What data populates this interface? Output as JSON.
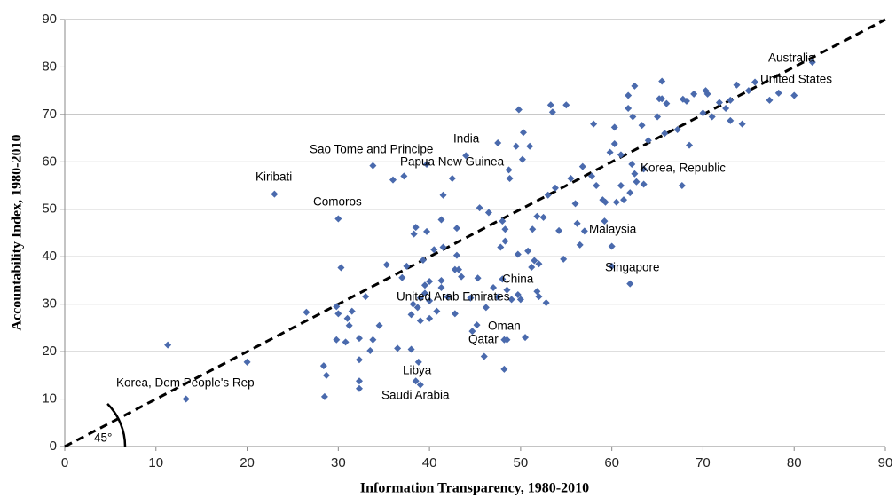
{
  "chart_data": {
    "type": "scatter",
    "x_label": "Information Transparency, 1980-2010",
    "y_label": "Accountability Index, 1980-2010",
    "xlim": [
      0,
      90
    ],
    "ylim": [
      0,
      90
    ],
    "xticks": [
      0,
      10,
      20,
      30,
      40,
      50,
      60,
      70,
      80,
      90
    ],
    "yticks": [
      0,
      10,
      20,
      30,
      40,
      50,
      60,
      70,
      80,
      90
    ],
    "grid": true,
    "diagonal": {
      "x": [
        0,
        90
      ],
      "y": [
        0,
        90
      ],
      "label": "45°"
    },
    "annotations": [
      "Australia",
      "United States",
      "Korea, Republic",
      "Malaysia",
      "Singapore",
      "China",
      "United Arab Emirates",
      "Oman",
      "Qatar",
      "Libya",
      "Saudi Arabia",
      "Korea, Dem People's Rep",
      "Kiribati",
      "Comoros",
      "Sao Tome and Principe",
      "Papua New Guinea",
      "India"
    ],
    "series": [
      {
        "color": "#4a6aad",
        "x": [
          11.3,
          13.3,
          20,
          23,
          26.5,
          28.4,
          28.5,
          28.7,
          29.8,
          29.8,
          30,
          30,
          30.3,
          30.8,
          31,
          31.2,
          31.5,
          32.3,
          32.3,
          32.3,
          32.3,
          33,
          33.5,
          33.8,
          33.8,
          34.5,
          35.3,
          36,
          36.5,
          37,
          37.2,
          37.5,
          38,
          38,
          38.2,
          38.3,
          38.5,
          38.5,
          38.7,
          38.8,
          39,
          39,
          39,
          39.3,
          39.5,
          39.5,
          39.7,
          39.7,
          40,
          40,
          40,
          40.5,
          40.8,
          41.3,
          41.3,
          41.3,
          41.5,
          41.5,
          42,
          42.5,
          42.8,
          42.8,
          43,
          43,
          43.2,
          43.5,
          44,
          44.5,
          44.7,
          45.2,
          45.3,
          45.5,
          46,
          46.2,
          46.5,
          47,
          47.5,
          47.5,
          47.8,
          48,
          48,
          48.2,
          48.2,
          48.3,
          48.3,
          48.5,
          48.5,
          48.7,
          48.8,
          49,
          49.5,
          49.7,
          49.7,
          49.8,
          50,
          50.2,
          50.3,
          50.5,
          50.8,
          51,
          51.2,
          51.3,
          51.5,
          51.8,
          51.8,
          52,
          52,
          52.5,
          52.8,
          53,
          53.3,
          53.5,
          53.8,
          54.2,
          54.7,
          55,
          55.5,
          56,
          56.2,
          56.5,
          56.8,
          57,
          57.8,
          58,
          58.3,
          59,
          59.2,
          59.3,
          59.8,
          60,
          60,
          60.3,
          60.3,
          60.5,
          61,
          61,
          61.3,
          61.8,
          61.8,
          62,
          62,
          62.2,
          62.3,
          62.5,
          62.5,
          62.7,
          63.3,
          63.5,
          63.5,
          64,
          65,
          65.2,
          65.5,
          65.5,
          65.8,
          66,
          67.2,
          67.7,
          67.8,
          68.2,
          68.5,
          69,
          70,
          70.3,
          70.5,
          71,
          71.8,
          72.5,
          73,
          73,
          73.7,
          74.3,
          75,
          75.7,
          77.3,
          78.3,
          80,
          82
        ],
        "values": [
          21.4,
          10,
          17.8,
          53.2,
          28.3,
          17,
          10.5,
          15,
          29.5,
          22.5,
          28,
          48,
          37.7,
          22,
          27,
          25.5,
          28.5,
          18.3,
          13.8,
          12.2,
          22.8,
          31.6,
          20.2,
          59.2,
          22.5,
          25.5,
          38.3,
          56.2,
          20.7,
          35.6,
          57,
          38,
          27.8,
          20.5,
          30,
          44.8,
          46.2,
          13.8,
          29.3,
          17.8,
          13,
          26.5,
          31.3,
          39.3,
          34,
          32.3,
          59.5,
          45.3,
          34.8,
          27,
          30.7,
          41.5,
          28.5,
          47.8,
          33.5,
          35,
          53,
          42,
          31.5,
          56.5,
          28,
          37.3,
          46,
          40.3,
          37.3,
          35.8,
          61.3,
          31.3,
          24.3,
          25.6,
          35.5,
          50.3,
          19,
          29.3,
          49.3,
          33.5,
          64,
          31.5,
          42,
          35.3,
          47.5,
          22.5,
          16.3,
          45.8,
          43.3,
          33,
          22.5,
          58.3,
          56.5,
          31,
          63.3,
          40.5,
          32,
          71,
          31,
          60.5,
          66.2,
          23,
          41.2,
          63.3,
          37.8,
          45.8,
          39.2,
          32.7,
          48.5,
          31.6,
          38.5,
          48.3,
          30.3,
          53,
          72,
          70.5,
          54.5,
          45.5,
          39.5,
          72,
          56.5,
          51.2,
          47,
          42.5,
          59,
          45.4,
          57,
          68,
          55,
          52,
          47.5,
          51.5,
          62,
          38,
          42.2,
          67.3,
          63.8,
          51.5,
          61.5,
          55,
          52,
          74,
          71.3,
          53.5,
          34.3,
          59.5,
          69.5,
          76,
          57.5,
          55.8,
          67.7,
          55.3,
          58.5,
          64.5,
          69.5,
          73.3,
          77,
          73.3,
          66,
          72.3,
          66.8,
          55,
          73.2,
          72.8,
          63.5,
          74.3,
          70.3,
          75,
          74.3,
          69.5,
          72.5,
          71.3,
          73,
          68.7,
          76.2,
          68,
          75,
          76.8,
          73,
          74.5,
          74,
          81
        ]
      }
    ]
  }
}
